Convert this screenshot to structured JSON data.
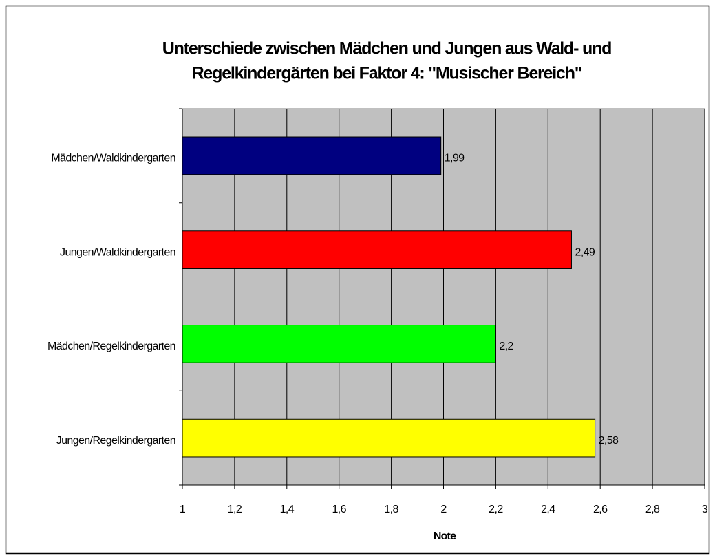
{
  "chart_data": {
    "type": "bar",
    "orientation": "horizontal",
    "title": [
      "Unterschiede zwischen Mädchen und Jungen aus Wald- und",
      "Regelkindergärten bei Faktor 4: \"Musischer Bereich\""
    ],
    "xlabel": "Note",
    "categories": [
      "Mädchen/Waldkindergarten",
      "Jungen/Waldkindergarten",
      "Mädchen/Regelkindergarten",
      "Jungen/Regelkindergarten"
    ],
    "values": [
      1.99,
      2.49,
      2.2,
      2.58
    ],
    "value_labels": [
      "1,99",
      "2,49",
      "2,2",
      "2,58"
    ],
    "colors": [
      "#000080",
      "#ff0000",
      "#00ff00",
      "#ffff00"
    ],
    "xlim": [
      1,
      3
    ],
    "xticks": [
      1,
      {
        "value": 1.2,
        "label": "1,2"
      },
      {
        "value": 1.4,
        "label": "1,4"
      },
      {
        "value": 1.6,
        "label": "1,6"
      },
      {
        "value": 1.8,
        "label": "1,8"
      },
      2,
      {
        "value": 2.2,
        "label": "2,2"
      },
      {
        "value": 2.4,
        "label": "2,4"
      },
      {
        "value": 2.6,
        "label": "2,6"
      },
      {
        "value": 2.8,
        "label": "2,8"
      },
      3
    ],
    "grid": true
  }
}
